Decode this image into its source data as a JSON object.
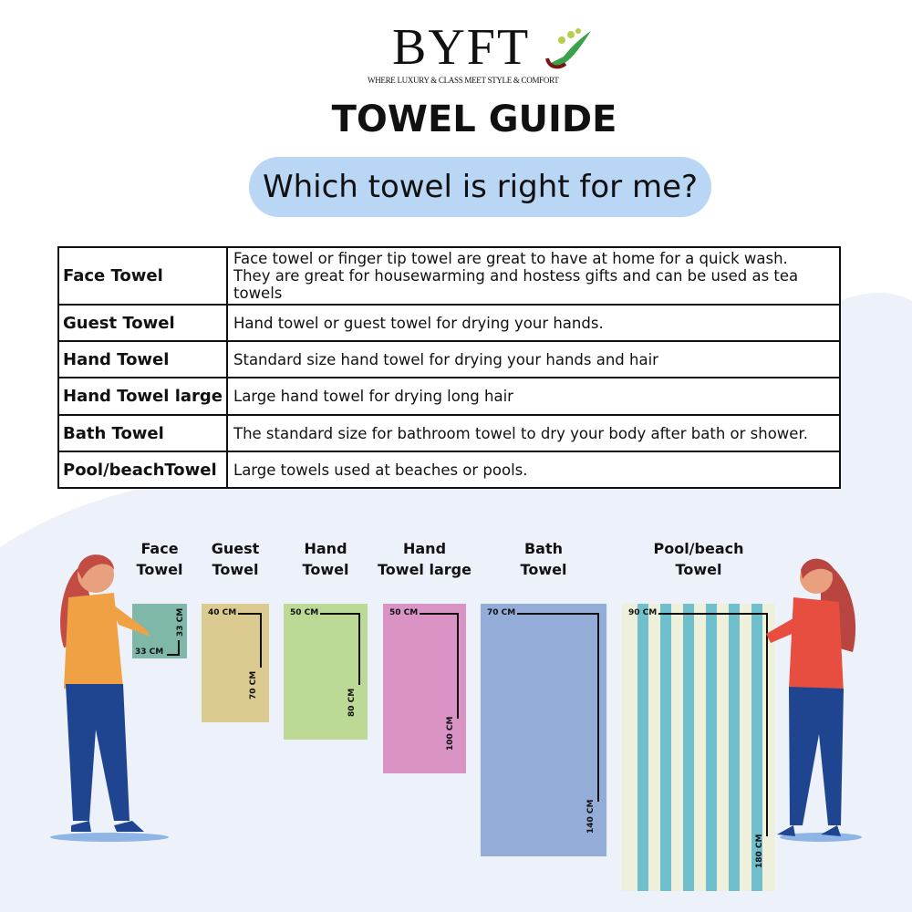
{
  "brand": {
    "name": "BYFT",
    "tagline": "WHERE LUXURY & CLASS MEET STYLE & COMFORT"
  },
  "title": "TOWEL GUIDE",
  "subtitle": "Which towel is right for me?",
  "table": [
    {
      "name": "Face Towel",
      "desc": [
        "Face towel or finger tip towel are great to have at home for a quick wash.",
        "They are great for housewarming and hostess gifts and can be used as tea towels"
      ]
    },
    {
      "name": "Guest Towel",
      "desc": [
        "Hand towel or guest towel for drying your hands."
      ]
    },
    {
      "name": "Hand Towel",
      "desc": [
        "Standard size hand towel for drying your hands and hair"
      ]
    },
    {
      "name": "Hand Towel large",
      "desc": [
        "Large hand towel for drying long hair"
      ]
    },
    {
      "name": "Bath Towel",
      "desc": [
        "The standard size for bathroom towel to dry your body after bath or shower."
      ]
    },
    {
      "name": "Pool/beachTowel",
      "desc": [
        "Large towels used at beaches or pools."
      ]
    }
  ],
  "towels": [
    {
      "label": [
        "Face",
        "Towel"
      ],
      "width": "33 CM",
      "height": "33 CM",
      "color": "#7fb8a8"
    },
    {
      "label": [
        "Guest",
        "Towel"
      ],
      "width": "40 CM",
      "height": "70 CM",
      "color": "#dccb91"
    },
    {
      "label": [
        "Hand",
        "Towel"
      ],
      "width": "50 CM",
      "height": "80 CM",
      "color": "#bcd996"
    },
    {
      "label": [
        "Hand",
        "Towel large"
      ],
      "width": "50 CM",
      "height": "100 CM",
      "color": "#d993c4"
    },
    {
      "label": [
        "Bath",
        "Towel"
      ],
      "width": "70 CM",
      "height": "140 CM",
      "color": "#94acd8"
    },
    {
      "label": [
        "Pool/beach",
        "Towel"
      ],
      "width": "90 CM",
      "height": "180 CM",
      "color": "#eef0dc",
      "stripe": "#6fbfcc"
    }
  ]
}
